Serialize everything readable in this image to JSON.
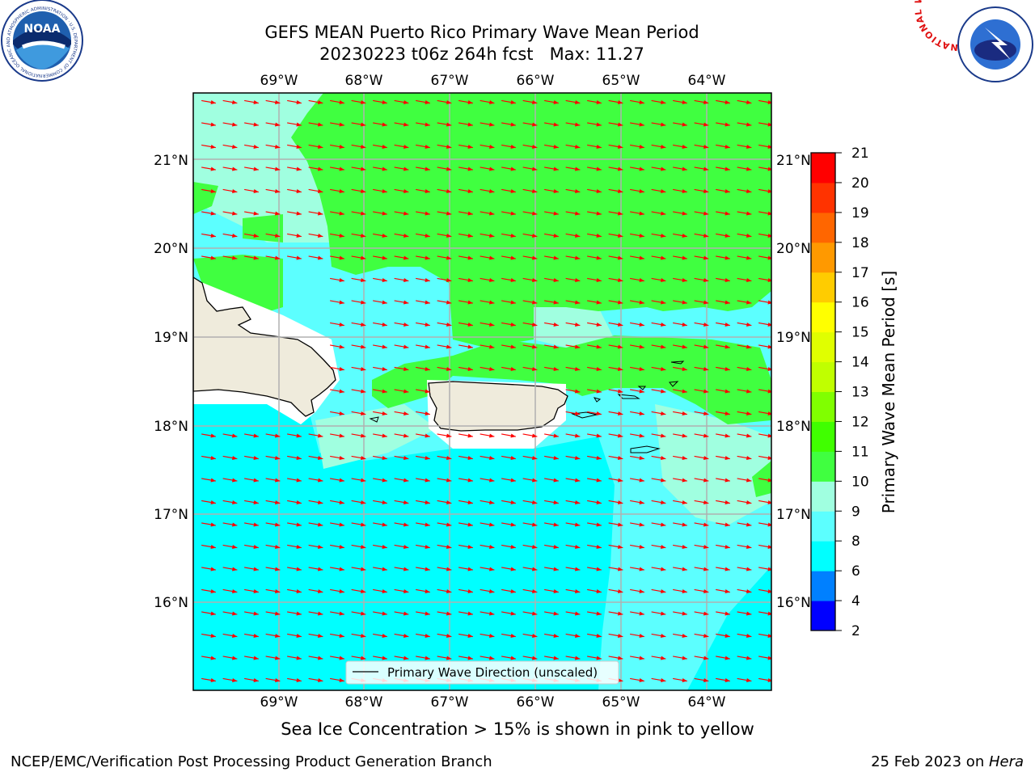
{
  "title": {
    "line1": "GEFS MEAN Puerto Rico Primary Wave Mean Period",
    "line2": "20230223 t06z 264h fcst   Max: 11.27"
  },
  "map": {
    "lon_labels": [
      "69°W",
      "68°W",
      "67°W",
      "66°W",
      "65°W",
      "64°W"
    ],
    "lat_labels": [
      "21°N",
      "20°N",
      "19°N",
      "18°N",
      "17°N",
      "16°N"
    ],
    "legend_label": "Primary Wave Direction (unscaled)",
    "arrow_color": "#ff0000",
    "land_color": "#efebdc"
  },
  "colorbar": {
    "label": "Primary Wave Mean Period [s]",
    "ticks": [
      "2",
      "4",
      "6",
      "8",
      "9",
      "10",
      "11",
      "12",
      "13",
      "14",
      "15",
      "16",
      "17",
      "18",
      "19",
      "20",
      "21"
    ],
    "colors": [
      "#0000ff",
      "#0080ff",
      "#00ffff",
      "#5cffff",
      "#a0ffe0",
      "#40ff40",
      "#40ff00",
      "#80ff00",
      "#c0ff00",
      "#e0ff00",
      "#ffff00",
      "#ffcc00",
      "#ff9900",
      "#ff6600",
      "#ff3300",
      "#ff0000"
    ]
  },
  "caption": "Sea Ice Concentration > 15% is shown in pink to yellow",
  "footer": {
    "left": "NCEP/EMC/Verification Post Processing Product Generation Branch",
    "right_prefix": "25 Feb 2023 on ",
    "right_host": "Hera"
  },
  "logos": {
    "noaa_text": "NOAA",
    "noaa_ring": "NATIONAL OCEANIC AND ATMOSPHERIC ADMINISTRATION · U.S. DEPARTMENT OF COMMERCE",
    "nws_ring": "NATIONAL WEATHER SERVICE"
  }
}
